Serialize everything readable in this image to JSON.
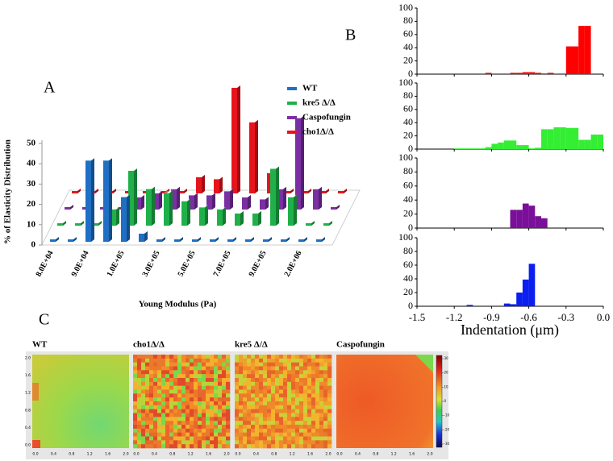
{
  "chart_data": [
    {
      "type": "bar3d",
      "panel_label": "A",
      "xlabel": "Young Modulus (Pa)",
      "ylabel": "% of Elasticity Distribution",
      "categories": [
        "8.0E+04",
        null,
        "9.0E+04",
        null,
        "1.0E+05",
        null,
        "3.0E+05",
        null,
        "5.0E+05",
        null,
        "7.0E+05",
        null,
        "9.0E+05",
        null,
        "2.0E+06",
        null
      ],
      "ylim": [
        0,
        50
      ],
      "yticks": [
        0,
        10,
        20,
        30,
        40,
        50
      ],
      "legend": "upper right",
      "series": [
        {
          "name": "WT",
          "color": "#1f6fc4",
          "values": [
            0,
            0,
            40,
            40,
            22,
            4,
            0,
            0,
            0,
            0,
            0,
            0,
            0,
            0,
            0,
            0
          ]
        },
        {
          "name": "kre5 Δ/Δ",
          "color": "#1fb04a",
          "values": [
            0,
            0,
            0,
            8,
            27,
            18,
            16,
            12,
            9,
            8,
            6,
            6,
            28,
            14,
            0,
            0
          ]
        },
        {
          "name": "Caspofungin",
          "color": "#7a2fa3",
          "values": [
            0,
            0,
            0,
            0,
            6,
            8,
            10,
            7,
            7,
            9,
            6,
            5,
            10,
            45,
            10,
            0
          ]
        },
        {
          "name": "cho1Δ/Δ",
          "color": "#e8141c",
          "values": [
            0,
            0,
            0,
            0,
            0,
            0,
            0,
            8,
            7,
            52,
            35,
            10,
            0,
            0,
            0,
            0
          ]
        }
      ]
    },
    {
      "type": "histogram",
      "panel_label": "B",
      "xlabel": "Indentation (μm)",
      "xlim": [
        -1.5,
        0
      ],
      "xticks": [
        -1.5,
        -1.2,
        -0.9,
        -0.6,
        -0.3,
        {
          "value": 0,
          "label": "0.0"
        }
      ],
      "ylim": [
        0,
        100
      ],
      "yticks": [
        0,
        20,
        40,
        60,
        80,
        100
      ],
      "bins": [
        -1.5,
        -1.45,
        -1.4,
        -1.35,
        -1.3,
        -1.25,
        -1.2,
        -1.15,
        -1.1,
        -1.05,
        -1.0,
        -0.95,
        -0.9,
        -0.85,
        -0.8,
        -0.75,
        -0.7,
        -0.65,
        -0.6,
        -0.55,
        -0.5,
        -0.45,
        -0.4,
        -0.35,
        -0.3,
        -0.25,
        -0.2,
        -0.15,
        -0.1,
        -0.05,
        0
      ],
      "series": [
        {
          "color": "#ff0000",
          "values": [
            0,
            0,
            0,
            0,
            0,
            0,
            0,
            0,
            0,
            0,
            0,
            2,
            0,
            0,
            0,
            2,
            2,
            3,
            3,
            2,
            1,
            2,
            0,
            0,
            42,
            42,
            73,
            73,
            0,
            0
          ]
        },
        {
          "color": "#33ee33",
          "values": [
            0,
            0,
            0,
            0,
            0,
            0,
            1,
            1,
            1,
            1,
            1,
            3,
            8,
            10,
            13,
            13,
            6,
            6,
            1,
            2,
            30,
            30,
            33,
            33,
            32,
            32,
            14,
            14,
            22,
            22
          ]
        },
        {
          "color": "#7a0f99",
          "values": [
            0,
            0,
            0,
            0,
            0,
            0,
            0,
            0,
            0,
            0,
            0,
            0,
            0,
            0,
            0,
            26,
            26,
            35,
            32,
            17,
            14,
            0,
            0,
            0,
            0,
            0,
            0,
            0,
            0,
            0
          ]
        },
        {
          "color": "#0a1ff0",
          "values": [
            0,
            0,
            0,
            0,
            0,
            0,
            0,
            0,
            2,
            0,
            0,
            0,
            0,
            0,
            4,
            3,
            20,
            39,
            62,
            0,
            0,
            0,
            0,
            0,
            0,
            0,
            0,
            0,
            0,
            0
          ]
        }
      ]
    },
    {
      "type": "heatmap",
      "panel_label": "C",
      "panels": [
        {
          "title": "WT"
        },
        {
          "title": "cho1Δ/Δ"
        },
        {
          "title": "kre5 Δ/Δ"
        },
        {
          "title": "Caspofungin"
        }
      ],
      "xticks": [
        {
          "value": 0,
          "label": "0.0"
        },
        0.4,
        0.8,
        1.2,
        1.6,
        {
          "value": 2,
          "label": "2.0"
        }
      ],
      "yticks": [
        {
          "value": 0,
          "label": "0.0"
        },
        0.4,
        0.8,
        1.2,
        1.6,
        {
          "value": 2,
          "label": "2.0"
        }
      ],
      "colorbar_ticks": [
        30,
        20,
        10,
        0,
        -10,
        -20,
        -30
      ]
    }
  ]
}
